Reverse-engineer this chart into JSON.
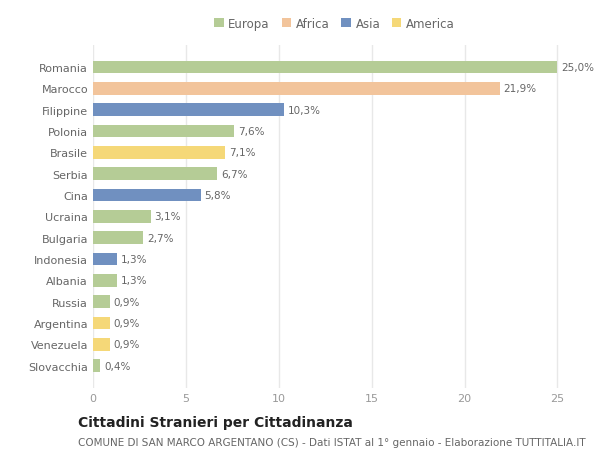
{
  "countries": [
    "Romania",
    "Marocco",
    "Filippine",
    "Polonia",
    "Brasile",
    "Serbia",
    "Cina",
    "Ucraina",
    "Bulgaria",
    "Indonesia",
    "Albania",
    "Russia",
    "Argentina",
    "Venezuela",
    "Slovacchia"
  ],
  "values": [
    25.0,
    21.9,
    10.3,
    7.6,
    7.1,
    6.7,
    5.8,
    3.1,
    2.7,
    1.3,
    1.3,
    0.9,
    0.9,
    0.9,
    0.4
  ],
  "labels": [
    "25,0%",
    "21,9%",
    "10,3%",
    "7,6%",
    "7,1%",
    "6,7%",
    "5,8%",
    "3,1%",
    "2,7%",
    "1,3%",
    "1,3%",
    "0,9%",
    "0,9%",
    "0,9%",
    "0,4%"
  ],
  "continents": [
    "Europa",
    "Africa",
    "Asia",
    "Europa",
    "America",
    "Europa",
    "Asia",
    "Europa",
    "Europa",
    "Asia",
    "Europa",
    "Europa",
    "America",
    "America",
    "Europa"
  ],
  "colors": {
    "Europa": "#b5cc96",
    "Africa": "#f2c49b",
    "Asia": "#7090c0",
    "America": "#f5d878"
  },
  "background_color": "#ffffff",
  "grid_color": "#e8e8e8",
  "bar_height": 0.6,
  "xlim": [
    0,
    26
  ],
  "xticks": [
    0,
    5,
    10,
    15,
    20,
    25
  ],
  "title": "Cittadini Stranieri per Cittadinanza",
  "subtitle": "COMUNE DI SAN MARCO ARGENTANO (CS) - Dati ISTAT al 1° gennaio - Elaborazione TUTTITALIA.IT",
  "title_fontsize": 10,
  "subtitle_fontsize": 7.5,
  "tick_fontsize": 8,
  "label_fontsize": 7.5,
  "legend_fontsize": 8.5
}
